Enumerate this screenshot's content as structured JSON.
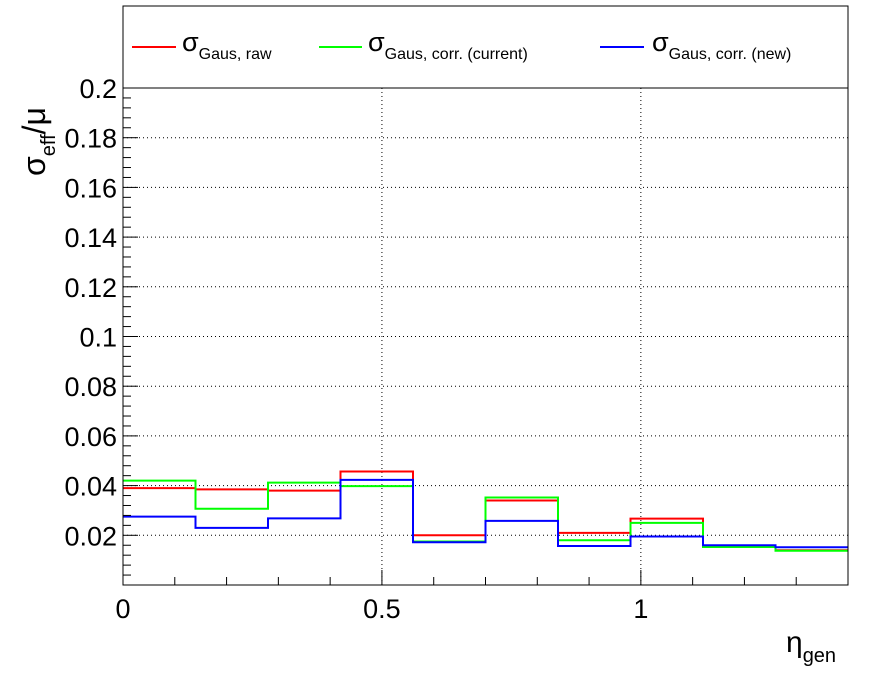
{
  "chart_data": {
    "type": "line",
    "style": "step-histogram",
    "xlabel": "η",
    "xlabel_sub": "gen",
    "ylabel": {
      "main": "σ",
      "sub": "eff",
      "rest": "/μ"
    },
    "xlim": [
      0,
      1.4
    ],
    "ylim": [
      0.0,
      0.2
    ],
    "x_ticks": [
      {
        "value": 0,
        "label": "0"
      },
      {
        "value": 0.5,
        "label": "0.5"
      },
      {
        "value": 1,
        "label": "1"
      }
    ],
    "y_ticks": [
      {
        "value": 0.02,
        "label": "0.02"
      },
      {
        "value": 0.04,
        "label": "0.04"
      },
      {
        "value": 0.06,
        "label": "0.06"
      },
      {
        "value": 0.08,
        "label": "0.08"
      },
      {
        "value": 0.1,
        "label": "0.1"
      },
      {
        "value": 0.12,
        "label": "0.12"
      },
      {
        "value": 0.14,
        "label": "0.14"
      },
      {
        "value": 0.16,
        "label": "0.16"
      },
      {
        "value": 0.18,
        "label": "0.18"
      },
      {
        "value": 0.2,
        "label": "0.2"
      }
    ],
    "x_minor_step": 0.1,
    "y_minor_step": 0.004,
    "grid": true,
    "legend_position": "top",
    "bin_edges": [
      0,
      0.14,
      0.28,
      0.42,
      0.56,
      0.7,
      0.84,
      0.98,
      1.12,
      1.26,
      1.4
    ],
    "series": [
      {
        "name_main": "σ",
        "name_sub": "Gaus, raw",
        "color": "#ff0000",
        "values": [
          0.039,
          0.0385,
          0.038,
          0.0457,
          0.02,
          0.034,
          0.021,
          0.0267,
          0.0155,
          0.014
        ]
      },
      {
        "name_main": "σ",
        "name_sub": "Gaus, corr. (current)",
        "color": "#00ff00",
        "values": [
          0.042,
          0.0307,
          0.0412,
          0.0398,
          0.0175,
          0.0352,
          0.018,
          0.025,
          0.0153,
          0.0138
        ]
      },
      {
        "name_main": "σ",
        "name_sub": "Gaus, corr. (new)",
        "color": "#0000ff",
        "values": [
          0.0275,
          0.023,
          0.0268,
          0.0423,
          0.0172,
          0.0258,
          0.0157,
          0.0195,
          0.016,
          0.0152
        ]
      }
    ]
  }
}
